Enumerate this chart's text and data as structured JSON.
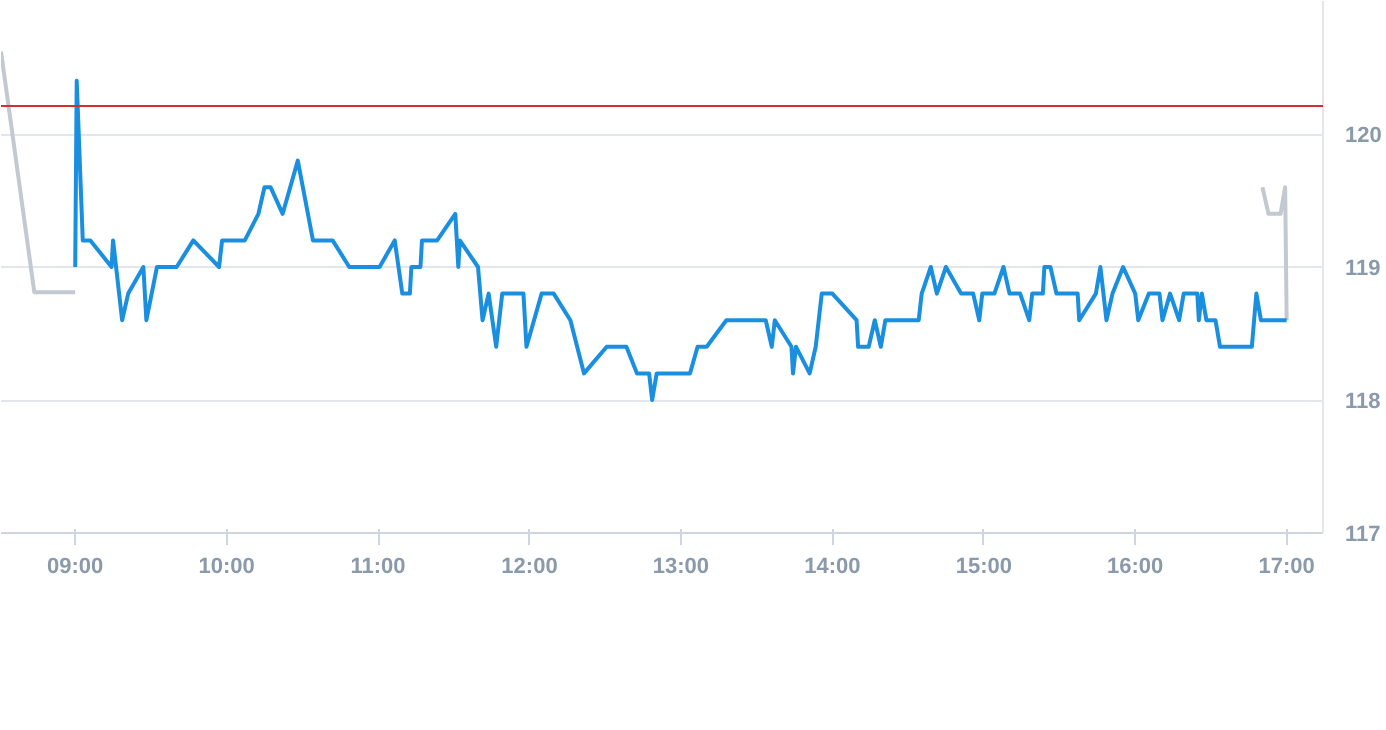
{
  "chart_data": {
    "type": "line",
    "xlim": [
      8.51,
      17.24
    ],
    "ylim": [
      117,
      121
    ],
    "xticks": [
      {
        "value": 9,
        "label": "09:00"
      },
      {
        "value": 10,
        "label": "10:00"
      },
      {
        "value": 11,
        "label": "11:00"
      },
      {
        "value": 12,
        "label": "12:00"
      },
      {
        "value": 13,
        "label": "13:00"
      },
      {
        "value": 14,
        "label": "14:00"
      },
      {
        "value": 15,
        "label": "15:00"
      },
      {
        "value": 16,
        "label": "16:00"
      },
      {
        "value": 17,
        "label": "17:00"
      }
    ],
    "yticks": [
      117,
      118,
      119,
      120
    ],
    "grid": "y",
    "ref_lines": [
      {
        "axis": "y",
        "value": 120.21,
        "color": "#d0302f"
      }
    ],
    "series": [
      {
        "color": "#c2c9d1",
        "x": [
          8.51,
          8.73,
          9.0
        ],
        "values": [
          120.62,
          118.81,
          118.81
        ]
      },
      {
        "color": "#c2c9d1",
        "x": [
          16.84,
          16.88,
          16.96,
          16.99,
          17.0
        ],
        "values": [
          119.6,
          119.4,
          119.4,
          119.6,
          118.6
        ]
      },
      {
        "color": "#1a8fe0",
        "x": [
          9.0,
          9.01,
          9.05,
          9.1,
          9.24,
          9.25,
          9.31,
          9.35,
          9.45,
          9.47,
          9.54,
          9.67,
          9.78,
          9.95,
          9.97,
          10.12,
          10.21,
          10.25,
          10.29,
          10.37,
          10.47,
          10.57,
          10.7,
          10.81,
          11.01,
          11.11,
          11.16,
          11.21,
          11.22,
          11.28,
          11.29,
          11.39,
          11.51,
          11.53,
          11.54,
          11.66,
          11.69,
          11.73,
          11.78,
          11.82,
          11.96,
          11.98,
          12.08,
          12.16,
          12.27,
          12.36,
          12.51,
          12.64,
          12.71,
          12.79,
          12.81,
          12.84,
          13.06,
          13.11,
          13.17,
          13.3,
          13.56,
          13.6,
          13.62,
          13.73,
          13.74,
          13.76,
          13.85,
          13.89,
          13.93,
          14.0,
          14.16,
          14.17,
          14.24,
          14.28,
          14.32,
          14.35,
          14.57,
          14.59,
          14.65,
          14.69,
          14.75,
          14.85,
          14.93,
          14.97,
          14.99,
          15.07,
          15.13,
          15.17,
          15.24,
          15.3,
          15.32,
          15.39,
          15.4,
          15.44,
          15.48,
          15.62,
          15.63,
          15.74,
          15.77,
          15.81,
          15.85,
          15.92,
          16.0,
          16.02,
          16.09,
          16.16,
          16.18,
          16.23,
          16.29,
          16.32,
          16.41,
          16.42,
          16.44,
          16.47,
          16.53,
          16.56,
          16.77,
          16.8,
          16.83,
          17.0
        ],
        "values": [
          119.0,
          120.4,
          119.2,
          119.2,
          119.0,
          119.2,
          118.6,
          118.8,
          119.0,
          118.6,
          119.0,
          119.0,
          119.2,
          119.0,
          119.2,
          119.2,
          119.4,
          119.6,
          119.6,
          119.4,
          119.8,
          119.2,
          119.2,
          119.0,
          119.0,
          119.2,
          118.8,
          118.8,
          119.0,
          119.0,
          119.2,
          119.2,
          119.4,
          119.0,
          119.2,
          119.0,
          118.6,
          118.8,
          118.4,
          118.8,
          118.8,
          118.4,
          118.8,
          118.8,
          118.6,
          118.2,
          118.4,
          118.4,
          118.2,
          118.2,
          118.0,
          118.2,
          118.2,
          118.4,
          118.4,
          118.6,
          118.6,
          118.4,
          118.6,
          118.4,
          118.2,
          118.4,
          118.2,
          118.4,
          118.8,
          118.8,
          118.6,
          118.4,
          118.4,
          118.6,
          118.4,
          118.6,
          118.6,
          118.8,
          119.0,
          118.8,
          119.0,
          118.8,
          118.8,
          118.6,
          118.8,
          118.8,
          119.0,
          118.8,
          118.8,
          118.6,
          118.8,
          118.8,
          119.0,
          119.0,
          118.8,
          118.8,
          118.6,
          118.8,
          119.0,
          118.6,
          118.8,
          119.0,
          118.8,
          118.6,
          118.8,
          118.8,
          118.6,
          118.8,
          118.6,
          118.8,
          118.8,
          118.6,
          118.8,
          118.6,
          118.6,
          118.4,
          118.4,
          118.8,
          118.6,
          118.6
        ]
      }
    ]
  }
}
